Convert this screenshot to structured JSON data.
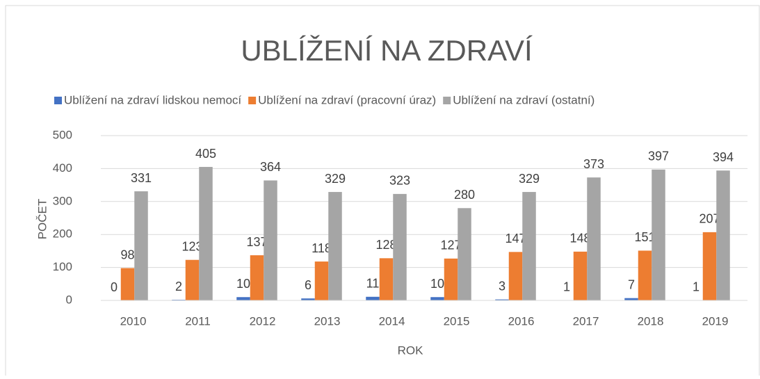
{
  "chart_data": {
    "type": "bar",
    "title": "UBLÍŽENÍ NA ZDRAVÍ",
    "x_label": "ROK",
    "y_label": "POČET",
    "categories": [
      "2010",
      "2011",
      "2012",
      "2013",
      "2014",
      "2015",
      "2016",
      "2017",
      "2018",
      "2019"
    ],
    "series": [
      {
        "name": "Ublížení na zdraví lidskou nemocí",
        "color": "#4472c4",
        "values": [
          0,
          2,
          10,
          6,
          11,
          10,
          3,
          1,
          7,
          1
        ]
      },
      {
        "name": "Ublížení na zdraví (pracovní úraz)",
        "color": "#ed7d31",
        "values": [
          98,
          123,
          137,
          118,
          128,
          127,
          147,
          148,
          151,
          207
        ]
      },
      {
        "name": "Ublížení na zdraví (ostatní)",
        "color": "#a5a5a5",
        "values": [
          331,
          405,
          364,
          329,
          323,
          280,
          329,
          373,
          397,
          394
        ]
      }
    ],
    "ylim": [
      0,
      500
    ],
    "yticks": [
      0,
      100,
      200,
      300,
      400,
      500
    ],
    "grid": true,
    "legend": "top"
  }
}
